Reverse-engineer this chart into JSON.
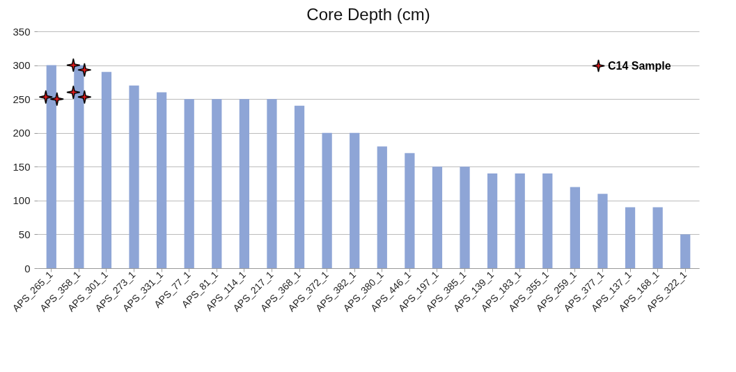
{
  "chart_data": {
    "type": "bar",
    "title": "Core Depth (cm)",
    "categories": [
      "APS_265_1",
      "APS_358_1",
      "APS_301_1",
      "APS_273_1",
      "APS_331_1",
      "APS_77_1",
      "APS_81_1",
      "APS_114_1",
      "APS_217_1",
      "APS_368_1",
      "APS_372_1",
      "APS_382_1",
      "APS_380_1",
      "APS_446_1",
      "APS_197_1",
      "APS_385_1",
      "APS_139_1",
      "APS_183_1",
      "APS_355_1",
      "APS_259_1",
      "APS_377_1",
      "APS_137_1",
      "APS_168_1",
      "APS_322_1"
    ],
    "series": [
      {
        "color": "#8ea5d6",
        "values": [
          300,
          300,
          290,
          270,
          260,
          250,
          250,
          250,
          250,
          240,
          200,
          200,
          180,
          170,
          150,
          150,
          140,
          140,
          140,
          120,
          110,
          90,
          90,
          50
        ]
      },
      {
        "type": "scatter",
        "name": "C14 Sample",
        "color": "#e31a1c",
        "x": [
          "APS_265_1",
          "APS_265_1",
          "APS_358_1",
          "APS_358_1",
          "APS_358_1",
          "APS_358_1"
        ],
        "values": [
          253,
          250,
          300,
          293,
          260,
          253
        ]
      }
    ],
    "ylim": [
      0,
      350
    ],
    "yticks": [
      0,
      50,
      100,
      150,
      200,
      250,
      300,
      350
    ],
    "grid": "y",
    "legend": "top right",
    "marker": "star"
  }
}
